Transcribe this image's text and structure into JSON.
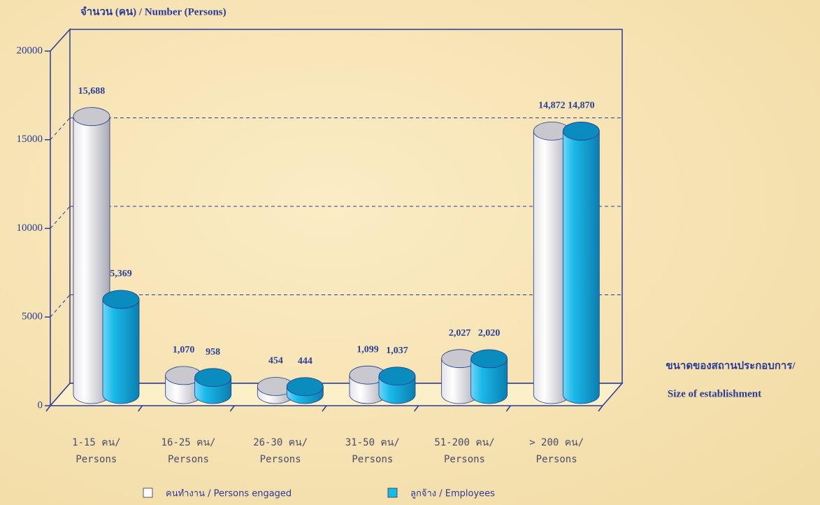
{
  "chart_data": {
    "type": "bar3d",
    "title": "จำนวน (คน) / Number (Persons)",
    "x_label": [
      "ขนาดของสถานประกอบการ/",
      "Size of establishment"
    ],
    "categories": [
      [
        "1-15 คน/",
        "Persons"
      ],
      [
        "16-25 คน/",
        "Persons"
      ],
      [
        "26-30 คน/",
        "Persons"
      ],
      [
        "31-50 คน/",
        "Persons"
      ],
      [
        "51-200 คน/",
        "Persons"
      ],
      [
        "> 200 คน/",
        "Persons"
      ]
    ],
    "series": [
      {
        "name": "คนทำงาน / Persons engaged",
        "color": "#ffffff",
        "values": [
          15688,
          1070,
          454,
          1099,
          2027,
          14872
        ],
        "value_labels": [
          "15,688",
          "1,070",
          "454",
          "1,099",
          "2,027",
          "14,872"
        ]
      },
      {
        "name": "ลูกจ้าง / Employees",
        "color": "#19b9ea",
        "values": [
          5369,
          958,
          444,
          1037,
          2020,
          14870
        ],
        "value_labels": [
          "5,369",
          "958",
          "444",
          "1,037",
          "2,020",
          "14,870"
        ]
      }
    ],
    "ylim": [
      0,
      20000
    ],
    "yticks": [
      0,
      5000,
      10000,
      15000,
      20000
    ],
    "grid": true
  }
}
